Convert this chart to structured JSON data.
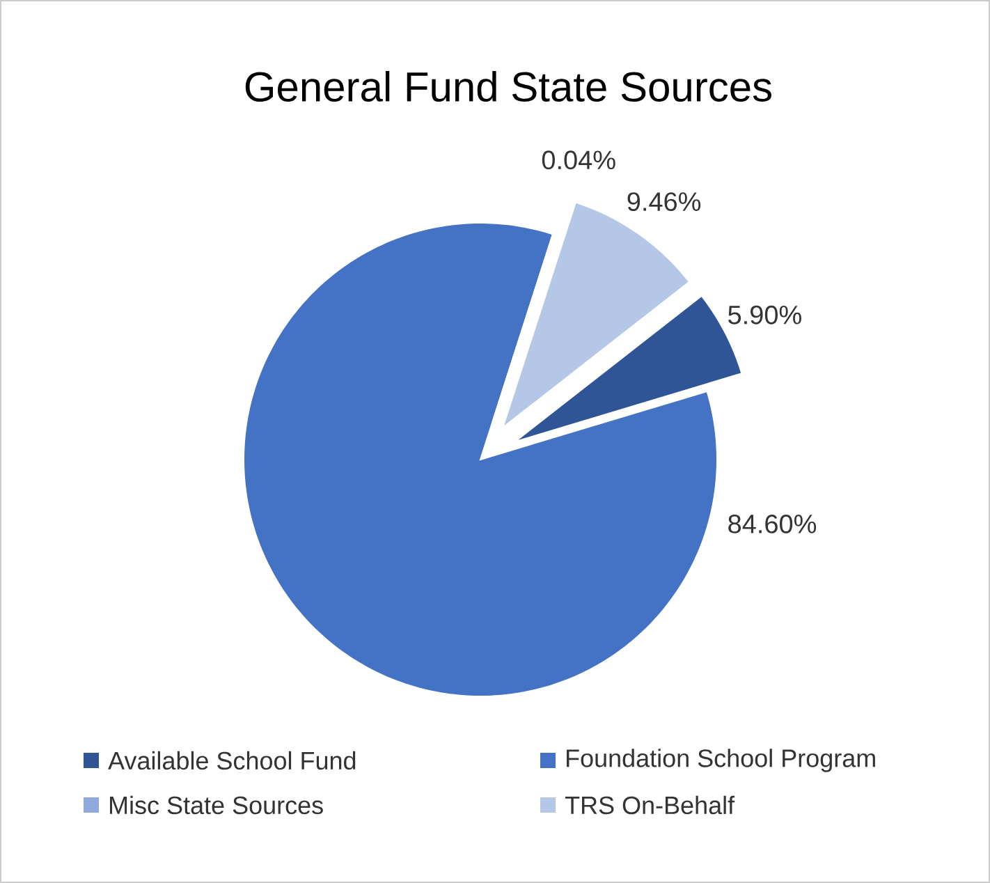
{
  "chart_data": {
    "type": "pie",
    "title": "General Fund State Sources",
    "categories": [
      "Available School Fund",
      "Foundation School Program",
      "Misc State Sources",
      "TRS On-Behalf"
    ],
    "values": [
      5.9,
      84.6,
      0.04,
      9.46
    ],
    "value_labels": [
      "5.90%",
      "84.60%",
      "0.04%",
      "9.46%"
    ],
    "colors": [
      "#2f5597",
      "#4472c4",
      "#8faadc",
      "#b4c7e7"
    ],
    "legend": "bottom"
  }
}
